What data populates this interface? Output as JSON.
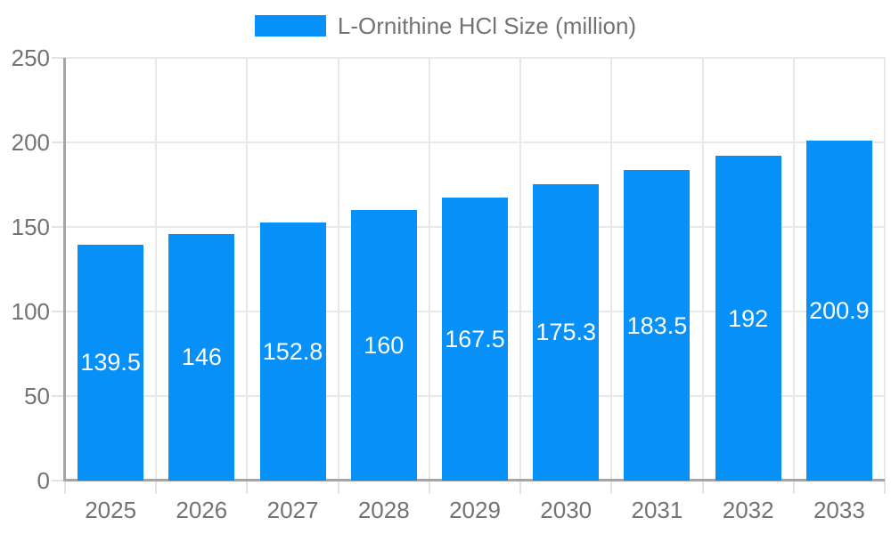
{
  "colors": {
    "bar": "#0690F8",
    "grid": "#E8E8E8",
    "axis": "#A5A5A5",
    "tick": "#E3E3E3",
    "text": "#737373",
    "value_text": "#FFFFFF",
    "background": "#FFFFFF"
  },
  "legend": {
    "label": "L-Ornithine HCl Size (million)"
  },
  "chart_data": {
    "type": "bar",
    "title": "L-Ornithine HCl Size (million)",
    "categories": [
      "2025",
      "2026",
      "2027",
      "2028",
      "2029",
      "2030",
      "2031",
      "2032",
      "2033"
    ],
    "series": [
      {
        "name": "L-Ornithine HCl Size (million)",
        "values": [
          139.5,
          146,
          152.8,
          160,
          167.5,
          175.3,
          183.5,
          192,
          200.9
        ]
      }
    ],
    "value_labels": [
      "139.5",
      "146",
      "152.8",
      "160",
      "167.5",
      "175.3",
      "183.5",
      "192",
      "200.9"
    ],
    "xlabel": "",
    "ylabel": "",
    "ylim": [
      0,
      250
    ],
    "yticks": [
      0,
      50,
      100,
      150,
      200,
      250
    ],
    "grid": true,
    "legend_position": "top"
  }
}
